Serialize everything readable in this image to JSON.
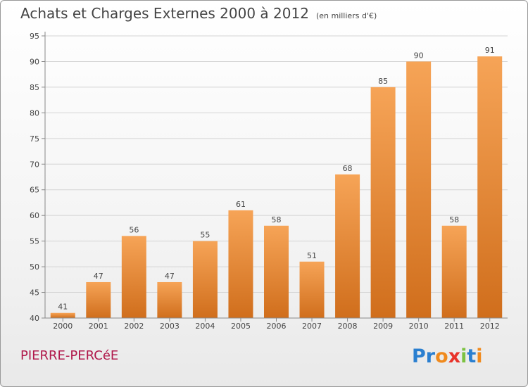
{
  "chart_data": {
    "type": "bar",
    "title": "Achats et Charges Externes 2000 à 2012",
    "subtitle": "(en milliers d'€)",
    "categories": [
      "2000",
      "2001",
      "2002",
      "2003",
      "2004",
      "2005",
      "2006",
      "2007",
      "2008",
      "2009",
      "2010",
      "2011",
      "2012"
    ],
    "values": [
      41,
      47,
      56,
      47,
      55,
      61,
      58,
      51,
      68,
      85,
      90,
      58,
      91
    ],
    "ylim": [
      40,
      95
    ],
    "yticks": [
      40,
      45,
      50,
      55,
      60,
      65,
      70,
      75,
      80,
      85,
      90,
      95
    ],
    "grid": true,
    "xlabel": "",
    "ylabel": ""
  },
  "footer": {
    "city": "PIERRE-PERCéE",
    "logo_letters": [
      "P",
      "r",
      "o",
      "x",
      "i",
      "t",
      "i"
    ]
  },
  "colors": {
    "bar_top": "#f6a457",
    "bar_bottom": "#d06e1c",
    "city": "#b0174a",
    "logo": [
      "#2a7fd0",
      "#2a7fd0",
      "#f08a1d",
      "#e8332a",
      "#7cc242",
      "#2a7fd0",
      "#f08a1d"
    ]
  }
}
